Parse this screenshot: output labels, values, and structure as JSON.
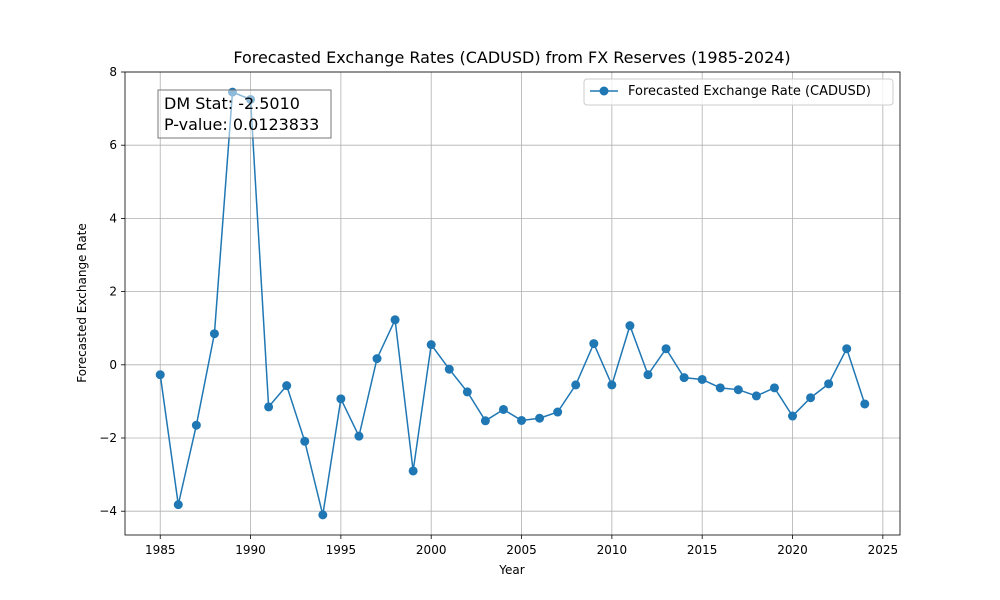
{
  "chart_data": {
    "type": "line",
    "title": "Forecasted Exchange Rates (CADUSD) from FX Reserves (1985-2024)",
    "xlabel": "Year",
    "ylabel": "Forecasted Exchange Rate",
    "xlim": [
      1983.05,
      2025.95
    ],
    "ylim": [
      -4.65,
      8.0
    ],
    "xticks": [
      1985,
      1990,
      1995,
      2000,
      2005,
      2010,
      2015,
      2020,
      2025
    ],
    "yticks": [
      -4,
      -2,
      0,
      2,
      4,
      6,
      8
    ],
    "xtick_labels": [
      "1985",
      "1990",
      "1995",
      "2000",
      "2005",
      "2010",
      "2015",
      "2020",
      "2025"
    ],
    "ytick_labels": [
      "−4",
      "−2",
      "0",
      "2",
      "4",
      "6",
      "8"
    ],
    "grid": true,
    "legend_position": "top-right",
    "color": "#1f77b4",
    "series": [
      {
        "name": "Forecasted Exchange Rate (CADUSD)",
        "x": [
          1985,
          1986,
          1987,
          1988,
          1989,
          1990,
          1991,
          1992,
          1993,
          1994,
          1995,
          1996,
          1997,
          1998,
          1999,
          2000,
          2001,
          2002,
          2003,
          2004,
          2005,
          2006,
          2007,
          2008,
          2009,
          2010,
          2011,
          2012,
          2013,
          2014,
          2015,
          2016,
          2017,
          2018,
          2019,
          2020,
          2021,
          2022,
          2023,
          2024
        ],
        "y": [
          -0.27,
          -3.82,
          -1.65,
          0.85,
          7.45,
          7.25,
          -1.15,
          -0.57,
          -2.09,
          -4.1,
          -0.93,
          -1.95,
          0.17,
          1.23,
          -2.9,
          0.55,
          -0.12,
          -0.74,
          -1.53,
          -1.22,
          -1.52,
          -1.46,
          -1.29,
          -0.55,
          0.58,
          -0.55,
          1.07,
          -0.27,
          0.44,
          -0.35,
          -0.4,
          -0.63,
          -0.68,
          -0.85,
          -0.63,
          -1.4,
          -0.9,
          -0.52,
          0.44,
          -1.07
        ]
      }
    ],
    "annotation": {
      "line1": "DM Stat: -2.5010",
      "line2": "P-value: 0.0123833"
    }
  }
}
